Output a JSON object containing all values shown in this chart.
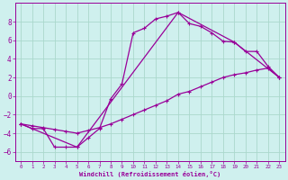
{
  "title": "",
  "xlabel": "Windchill (Refroidissement éolien,°C)",
  "bg_color": "#cff0ee",
  "grid_color": "#aad8cc",
  "line_color": "#990099",
  "xlim": [
    -0.5,
    23.5
  ],
  "ylim": [
    -7,
    10
  ],
  "xticks": [
    0,
    1,
    2,
    3,
    4,
    5,
    6,
    7,
    8,
    9,
    10,
    11,
    12,
    13,
    14,
    15,
    16,
    17,
    18,
    19,
    20,
    21,
    22,
    23
  ],
  "yticks": [
    -6,
    -4,
    -2,
    0,
    2,
    4,
    6,
    8
  ],
  "line1_x": [
    0,
    1,
    2,
    3,
    4,
    5,
    6,
    7,
    8,
    9,
    10,
    11,
    12,
    13,
    14,
    15,
    16,
    17,
    18,
    19,
    20,
    21,
    22,
    23
  ],
  "line1_y": [
    -3.0,
    -3.5,
    -3.5,
    -5.5,
    -5.5,
    -5.5,
    -4.5,
    -3.5,
    -0.3,
    1.3,
    6.8,
    7.3,
    8.3,
    8.6,
    9.0,
    7.8,
    7.5,
    6.8,
    5.9,
    5.8,
    4.8,
    4.8,
    3.2,
    2.0
  ],
  "line2_x": [
    0,
    1,
    2,
    3,
    4,
    5,
    6,
    7,
    8,
    9,
    10,
    11,
    12,
    13,
    14,
    15,
    16,
    17,
    18,
    19,
    20,
    21,
    22,
    23
  ],
  "line2_y": [
    -3.0,
    -3.2,
    -3.4,
    -3.6,
    -3.8,
    -4.0,
    -3.7,
    -3.4,
    -3.0,
    -2.5,
    -2.0,
    -1.5,
    -1.0,
    -0.5,
    0.2,
    0.5,
    1.0,
    1.5,
    2.0,
    2.3,
    2.5,
    2.8,
    3.0,
    2.0
  ],
  "line3_x": [
    0,
    5,
    14,
    19,
    23
  ],
  "line3_y": [
    -3.0,
    -5.5,
    9.0,
    5.8,
    2.0
  ]
}
